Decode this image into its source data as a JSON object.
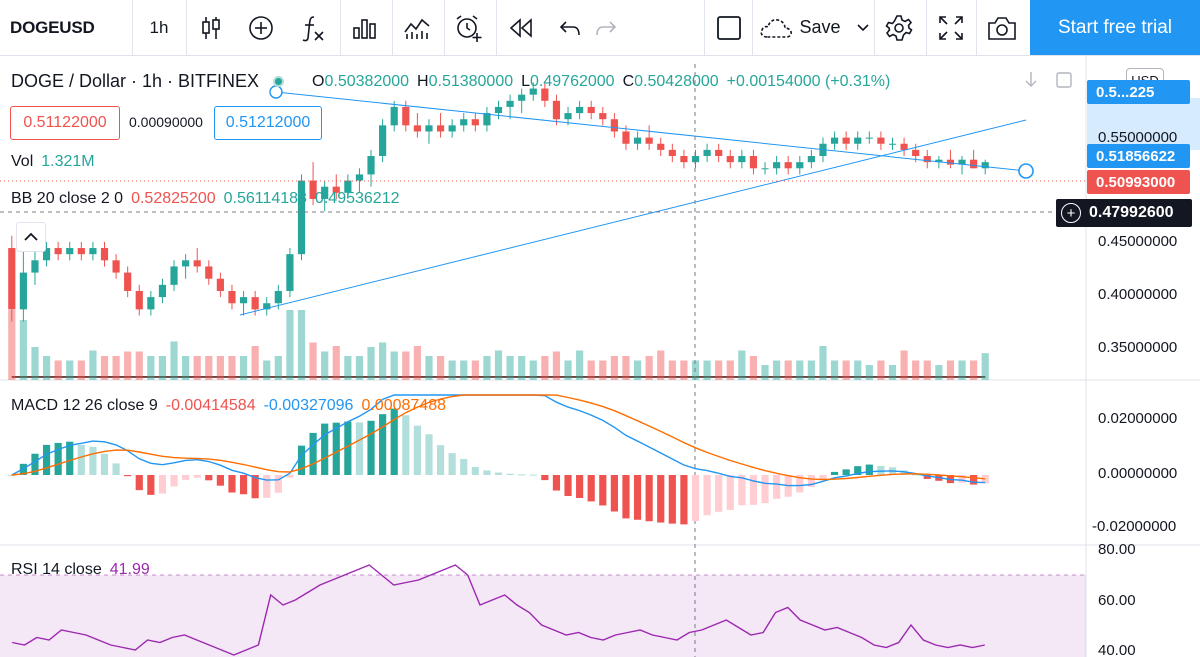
{
  "toolbar": {
    "symbol": "DOGEUSD",
    "interval": "1h",
    "save_label": "Save",
    "start_trial_label": "Start free trial",
    "icons": [
      "candles-icon",
      "add-indicator-icon",
      "fx-icon",
      "bar-chart-icon",
      "compare-icon",
      "alarm-icon",
      "replay-icon",
      "undo-icon",
      "redo-icon",
      "layout-icon",
      "cloud-icon",
      "chevron-down-icon",
      "gear-icon",
      "fullscreen-icon",
      "camera-icon"
    ]
  },
  "legend": {
    "title": "DOGE / Dollar · 1h · BITFINEX",
    "o_label": "O",
    "o_value": "0.50382000",
    "h_label": "H",
    "h_value": "0.51380000",
    "l_label": "L",
    "l_value": "0.49762000",
    "c_label": "C",
    "c_value": "0.50428000",
    "change": "+0.00154000 (+0.31%)",
    "sell_price": "0.51122000",
    "spread": "0.00090000",
    "buy_price": "0.51212000",
    "vol_label": "Vol",
    "vol_value": "1.321M",
    "bb_label": "BB 20 close 2 0",
    "bb_basis": "0.52825200",
    "bb_upper": "0.56114188",
    "bb_lower": "0.49536212",
    "macd_label": "MACD 12 26 close 9",
    "macd_hist": "-0.00414584",
    "macd_macd": "-0.00327096",
    "macd_signal": "0.00087488",
    "rsi_label": "RSI 14 close",
    "rsi_value": "41.99"
  },
  "price_axis": {
    "currency": "USD",
    "ticks": [
      "0.55000000",
      "0.45000000",
      "0.40000000",
      "0.35000000"
    ],
    "tag_upper": "0.5...225",
    "tag_trend": "0.51856622",
    "tag_last": "0.50993000",
    "crosshair": "0.47992600",
    "macd_ticks": [
      "0.02000000",
      "0.00000000",
      "-0.02000000"
    ],
    "rsi_ticks": [
      "80.00",
      "60.00",
      "40.00"
    ]
  },
  "colors": {
    "up": "#26a69a",
    "down": "#ef5350",
    "bb": "#1b7f6b",
    "basis": "#8b2b2b",
    "macd": "#2196f3",
    "signal": "#ff6d00",
    "rsi": "#9c27b0",
    "accent": "#2196f3"
  },
  "chart_data": {
    "type": "candlestick",
    "title": "DOGE / Dollar · 1h · BITFINEX",
    "interval": "1h",
    "ylim": [
      0.33,
      0.59
    ],
    "candles": [
      [
        0.44,
        0.45,
        0.38,
        0.39
      ],
      [
        0.39,
        0.44,
        0.38,
        0.42
      ],
      [
        0.42,
        0.44,
        0.41,
        0.43
      ],
      [
        0.43,
        0.445,
        0.425,
        0.44
      ],
      [
        0.44,
        0.445,
        0.43,
        0.435
      ],
      [
        0.435,
        0.445,
        0.43,
        0.44
      ],
      [
        0.44,
        0.445,
        0.43,
        0.435
      ],
      [
        0.435,
        0.445,
        0.43,
        0.44
      ],
      [
        0.44,
        0.445,
        0.425,
        0.43
      ],
      [
        0.43,
        0.435,
        0.415,
        0.42
      ],
      [
        0.42,
        0.425,
        0.4,
        0.405
      ],
      [
        0.405,
        0.41,
        0.385,
        0.39
      ],
      [
        0.39,
        0.405,
        0.385,
        0.4
      ],
      [
        0.4,
        0.415,
        0.395,
        0.41
      ],
      [
        0.41,
        0.43,
        0.405,
        0.425
      ],
      [
        0.425,
        0.435,
        0.415,
        0.43
      ],
      [
        0.43,
        0.44,
        0.42,
        0.425
      ],
      [
        0.425,
        0.43,
        0.41,
        0.415
      ],
      [
        0.415,
        0.42,
        0.4,
        0.405
      ],
      [
        0.405,
        0.41,
        0.39,
        0.395
      ],
      [
        0.395,
        0.405,
        0.385,
        0.4
      ],
      [
        0.4,
        0.405,
        0.385,
        0.39
      ],
      [
        0.39,
        0.4,
        0.385,
        0.395
      ],
      [
        0.395,
        0.41,
        0.39,
        0.405
      ],
      [
        0.405,
        0.44,
        0.4,
        0.435
      ],
      [
        0.435,
        0.5,
        0.43,
        0.495
      ],
      [
        0.495,
        0.51,
        0.475,
        0.48
      ],
      [
        0.48,
        0.495,
        0.47,
        0.49
      ],
      [
        0.49,
        0.5,
        0.48,
        0.485
      ],
      [
        0.485,
        0.5,
        0.48,
        0.495
      ],
      [
        0.495,
        0.505,
        0.485,
        0.5
      ],
      [
        0.5,
        0.52,
        0.49,
        0.515
      ],
      [
        0.515,
        0.545,
        0.51,
        0.54
      ],
      [
        0.54,
        0.56,
        0.535,
        0.555
      ],
      [
        0.555,
        0.56,
        0.535,
        0.54
      ],
      [
        0.54,
        0.55,
        0.53,
        0.535
      ],
      [
        0.535,
        0.545,
        0.525,
        0.54
      ],
      [
        0.54,
        0.55,
        0.53,
        0.535
      ],
      [
        0.535,
        0.545,
        0.53,
        0.54
      ],
      [
        0.54,
        0.55,
        0.535,
        0.545
      ],
      [
        0.545,
        0.55,
        0.535,
        0.54
      ],
      [
        0.54,
        0.555,
        0.535,
        0.55
      ],
      [
        0.55,
        0.56,
        0.545,
        0.555
      ],
      [
        0.555,
        0.565,
        0.545,
        0.56
      ],
      [
        0.56,
        0.57,
        0.55,
        0.565
      ],
      [
        0.565,
        0.575,
        0.56,
        0.57
      ],
      [
        0.57,
        0.575,
        0.555,
        0.56
      ],
      [
        0.56,
        0.565,
        0.54,
        0.545
      ],
      [
        0.545,
        0.555,
        0.54,
        0.55
      ],
      [
        0.55,
        0.56,
        0.545,
        0.555
      ],
      [
        0.555,
        0.56,
        0.545,
        0.55
      ],
      [
        0.55,
        0.555,
        0.54,
        0.545
      ],
      [
        0.545,
        0.55,
        0.53,
        0.535
      ],
      [
        0.535,
        0.54,
        0.52,
        0.525
      ],
      [
        0.525,
        0.535,
        0.52,
        0.53
      ],
      [
        0.53,
        0.54,
        0.52,
        0.525
      ],
      [
        0.525,
        0.53,
        0.515,
        0.52
      ],
      [
        0.52,
        0.525,
        0.51,
        0.515
      ],
      [
        0.515,
        0.52,
        0.505,
        0.51
      ],
      [
        0.51,
        0.52,
        0.505,
        0.515
      ],
      [
        0.515,
        0.525,
        0.51,
        0.52
      ],
      [
        0.52,
        0.525,
        0.51,
        0.515
      ],
      [
        0.515,
        0.52,
        0.505,
        0.51
      ],
      [
        0.51,
        0.52,
        0.505,
        0.515
      ],
      [
        0.515,
        0.52,
        0.5,
        0.505
      ],
      [
        0.505,
        0.51,
        0.5,
        0.505
      ],
      [
        0.505,
        0.515,
        0.5,
        0.51
      ],
      [
        0.51,
        0.515,
        0.5,
        0.505
      ],
      [
        0.505,
        0.515,
        0.5,
        0.51
      ],
      [
        0.51,
        0.52,
        0.505,
        0.515
      ],
      [
        0.515,
        0.53,
        0.51,
        0.525
      ],
      [
        0.525,
        0.535,
        0.52,
        0.53
      ],
      [
        0.53,
        0.535,
        0.52,
        0.525
      ],
      [
        0.525,
        0.535,
        0.52,
        0.53
      ],
      [
        0.53,
        0.535,
        0.525,
        0.53
      ],
      [
        0.53,
        0.535,
        0.52,
        0.525
      ],
      [
        0.525,
        0.53,
        0.52,
        0.525
      ],
      [
        0.525,
        0.53,
        0.515,
        0.52
      ],
      [
        0.52,
        0.525,
        0.51,
        0.515
      ],
      [
        0.515,
        0.52,
        0.505,
        0.51
      ],
      [
        0.51,
        0.515,
        0.505,
        0.512
      ],
      [
        0.512,
        0.52,
        0.505,
        0.508
      ],
      [
        0.508,
        0.515,
        0.5,
        0.512
      ],
      [
        0.512,
        0.52,
        0.505,
        0.505
      ],
      [
        0.505,
        0.512,
        0.5,
        0.51
      ]
    ],
    "rsi_values": [
      43,
      42,
      45,
      44,
      48,
      47,
      46,
      44,
      42,
      41,
      40,
      44,
      43,
      45,
      46,
      44,
      42,
      40,
      38,
      40,
      42,
      62,
      58,
      60,
      63,
      66,
      68,
      70,
      72,
      74,
      70,
      66,
      67,
      68,
      70,
      72,
      74,
      70,
      58,
      60,
      62,
      58,
      55,
      50,
      48,
      46,
      47,
      45,
      44,
      46,
      47,
      48,
      46,
      45,
      44,
      47,
      48,
      50,
      52,
      49,
      46,
      47,
      55,
      57,
      52,
      50,
      48,
      49,
      47,
      45,
      42,
      41,
      43,
      50,
      44,
      42,
      41,
      42,
      41,
      42
    ]
  }
}
